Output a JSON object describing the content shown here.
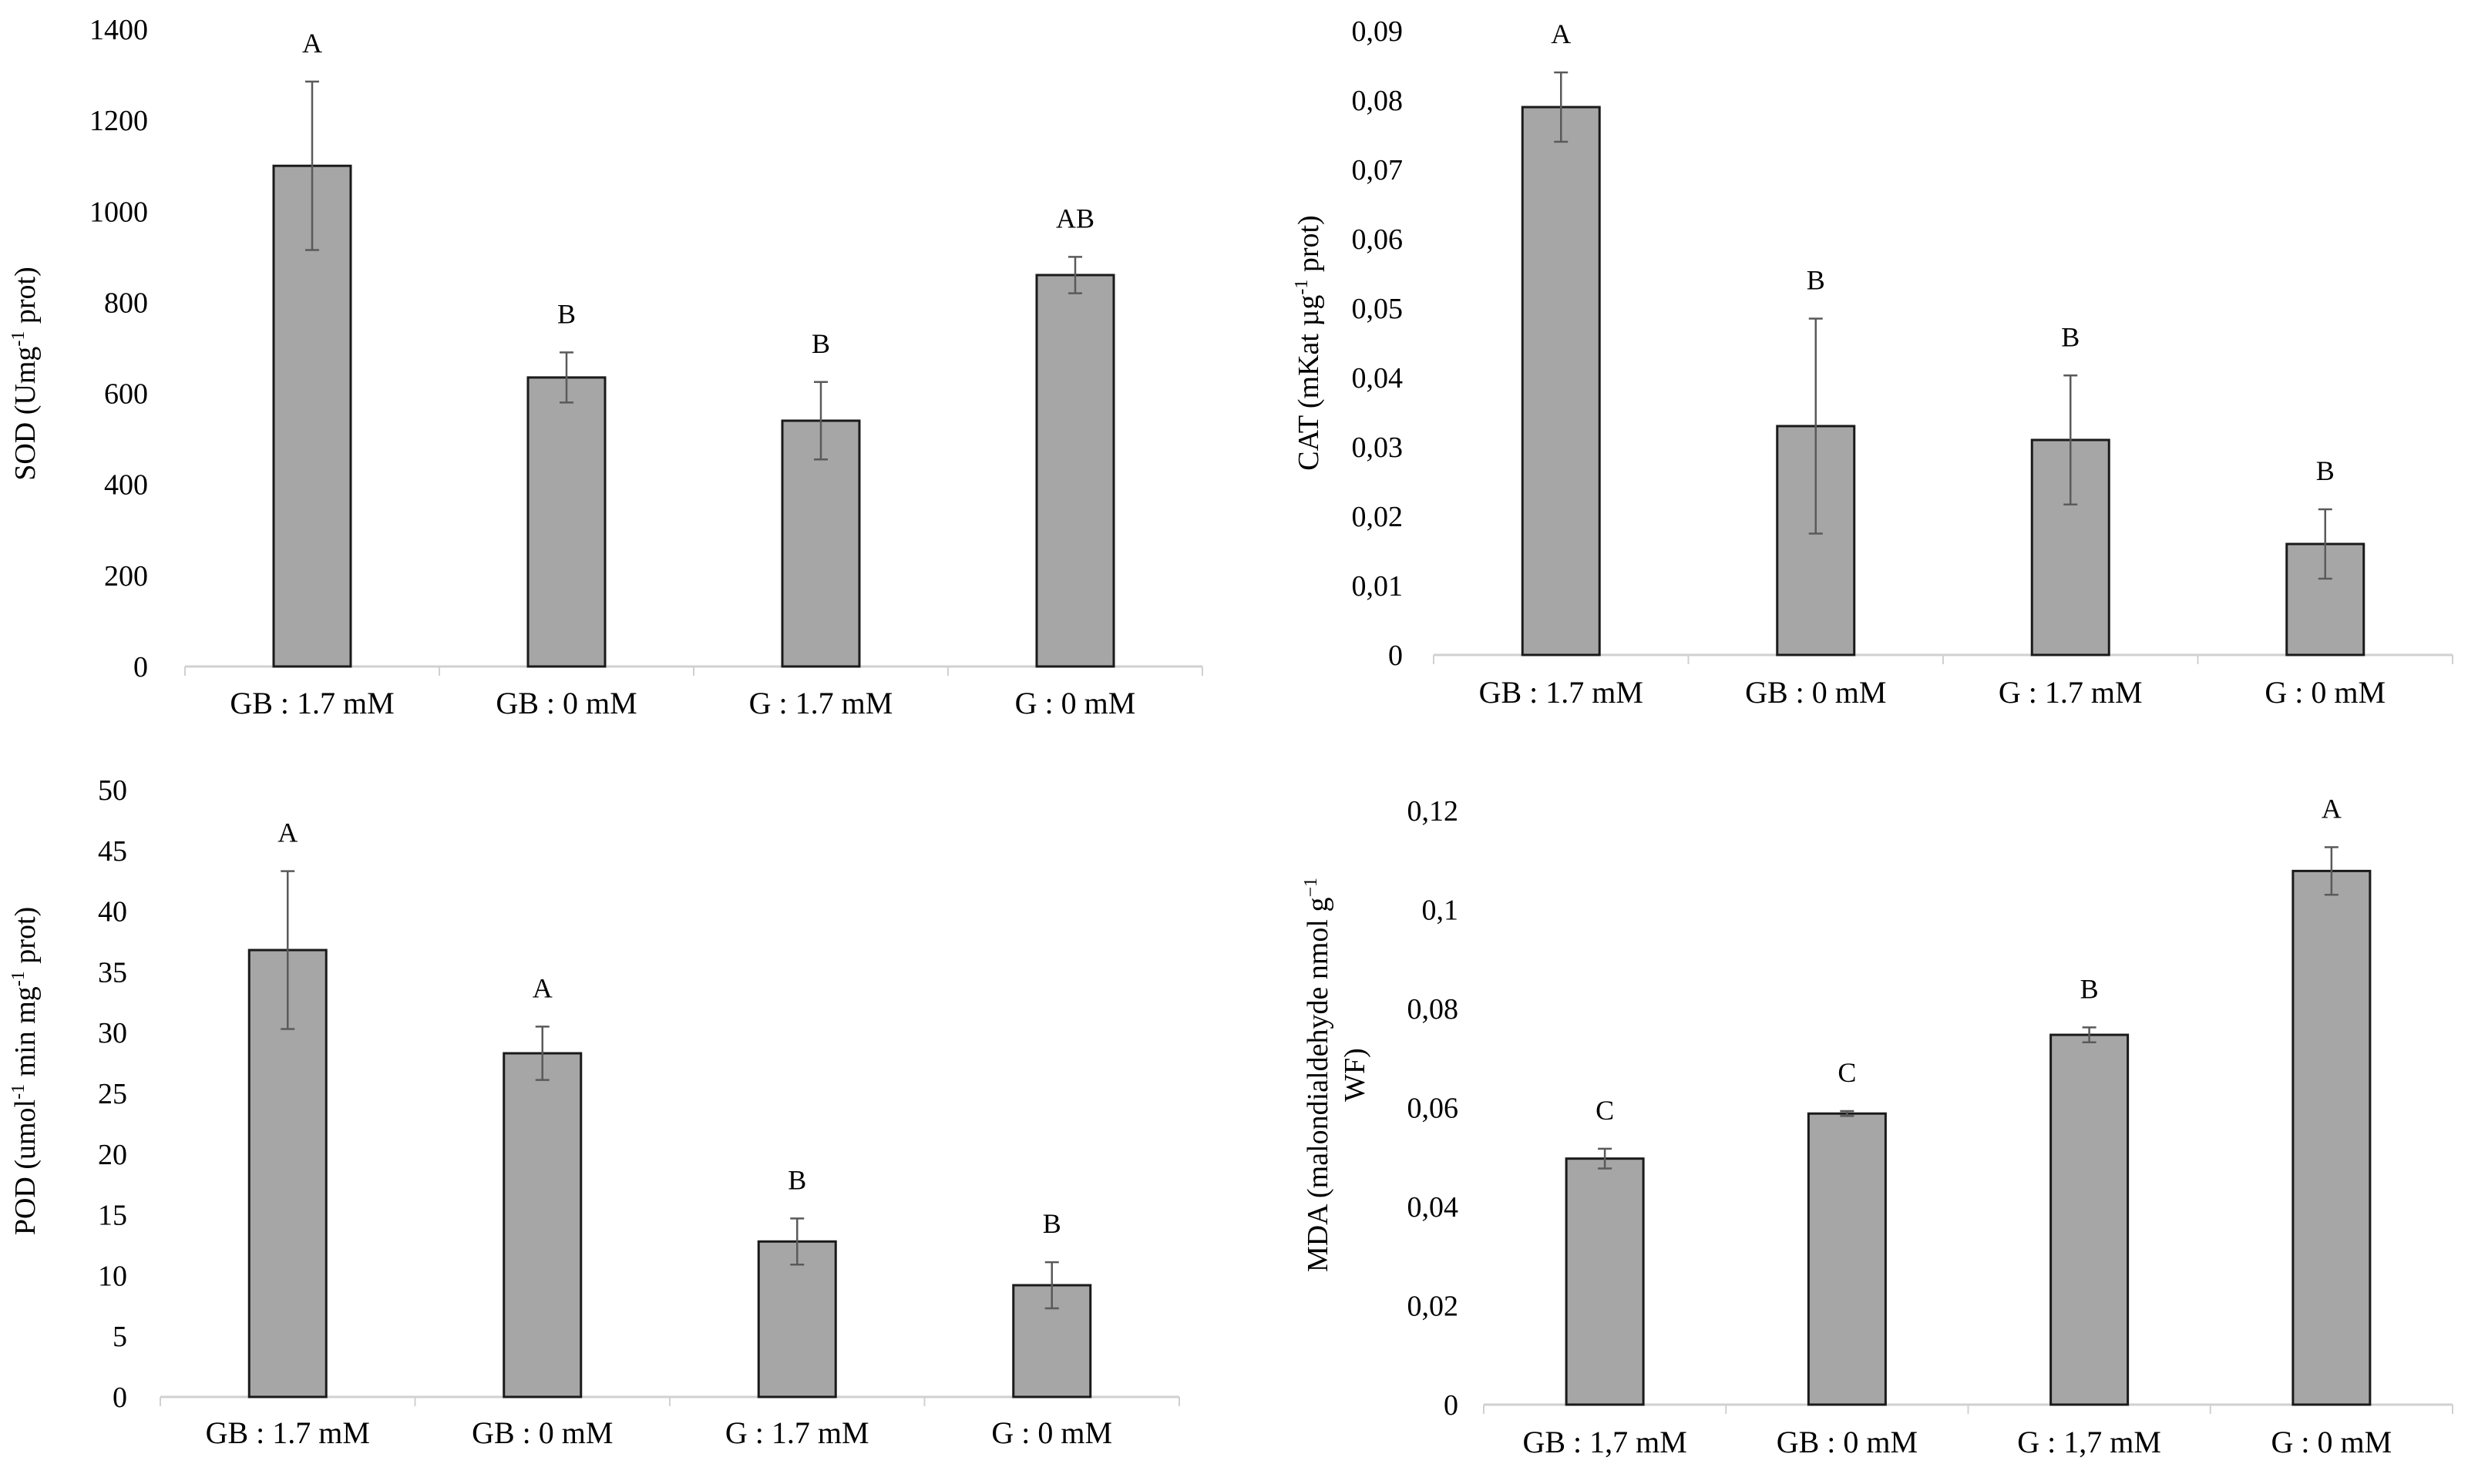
{
  "chart_data": [
    {
      "type": "bar",
      "ylabel": {
        "pre": "SOD (Umg",
        "sup": "-1",
        "post": " prot)"
      },
      "categories": [
        "GB : 1.7 mM",
        "GB : 0 mM",
        "G : 1.7 mM",
        "G : 0 mM"
      ],
      "values": [
        1100,
        635,
        540,
        860
      ],
      "errors": [
        185,
        55,
        85,
        40
      ],
      "significance": [
        "A",
        "B",
        "B",
        "AB"
      ],
      "ylim": [
        0,
        1400
      ],
      "yticks": [
        0,
        200,
        400,
        600,
        800,
        1000,
        1200,
        1400
      ],
      "ytick_labels": [
        "0",
        "200",
        "400",
        "600",
        "800",
        "1000",
        "1200",
        "1400"
      ]
    },
    {
      "type": "bar",
      "ylabel": {
        "pre": "CAT (mKat µg",
        "sup": "-1",
        "post": " prot)"
      },
      "categories": [
        "GB : 1.7 mM",
        "GB : 0 mM",
        "G : 1.7 mM",
        "G : 0 mM"
      ],
      "values": [
        0.079,
        0.033,
        0.031,
        0.016
      ],
      "errors": [
        0.005,
        0.0155,
        0.0093,
        0.005
      ],
      "significance": [
        "A",
        "B",
        "B",
        "B"
      ],
      "ylim": [
        0,
        0.09
      ],
      "yticks": [
        0,
        0.01,
        0.02,
        0.03,
        0.04,
        0.05,
        0.06,
        0.07,
        0.08,
        0.09
      ],
      "ytick_labels": [
        "0",
        "0,01",
        "0,02",
        "0,03",
        "0,04",
        "0,05",
        "0,06",
        "0,07",
        "0,08",
        "0,09"
      ]
    },
    {
      "type": "bar",
      "ylabel": {
        "pre": "POD (umol",
        "sup": "-1",
        "post": " min mg",
        "sup2": "-1",
        "post2": " prot)"
      },
      "categories": [
        "GB : 1.7 mM",
        "GB : 0 mM",
        "G : 1.7 mM",
        "G : 0 mM"
      ],
      "values": [
        36.8,
        28.3,
        12.8,
        9.2
      ],
      "errors": [
        6.5,
        2.2,
        1.9,
        1.9
      ],
      "significance": [
        "A",
        "A",
        "B",
        "B"
      ],
      "ylim": [
        0,
        50
      ],
      "yticks": [
        0,
        5,
        10,
        15,
        20,
        25,
        30,
        35,
        40,
        45,
        50
      ],
      "ytick_labels": [
        "0",
        "5",
        "10",
        "15",
        "20",
        "25",
        "30",
        "35",
        "40",
        "45",
        "50"
      ]
    },
    {
      "type": "bar",
      "ylabel": {
        "line1_pre": "MDA (malondialdehyde nmol g",
        "line1_sup": "−1",
        "line2": "WF)"
      },
      "categories": [
        "GB : 1,7 mM",
        "GB : 0 mM",
        "G : 1,7 mM",
        "G : 0 mM"
      ],
      "values": [
        0.0497,
        0.0588,
        0.0747,
        0.1078
      ],
      "errors": [
        0.002,
        0.0005,
        0.0015,
        0.0048
      ],
      "significance": [
        "C",
        "C",
        "B",
        "A"
      ],
      "ylim": [
        0,
        0.12
      ],
      "yticks": [
        0,
        0.02,
        0.04,
        0.06,
        0.08,
        0.1,
        0.12
      ],
      "ytick_labels": [
        "0",
        "0,02",
        "0,04",
        "0,06",
        "0,08",
        "0,1",
        "0,12"
      ]
    }
  ]
}
